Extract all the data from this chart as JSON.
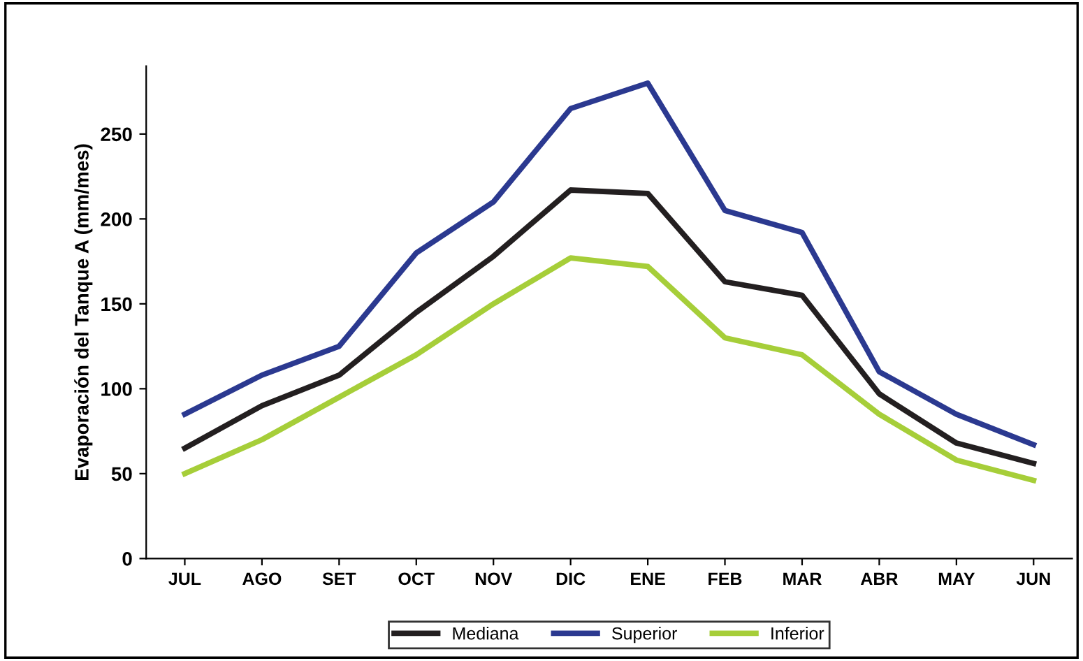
{
  "chart_data": {
    "type": "line",
    "ylabel": "Evaporación del Tanque A (mm/mes)",
    "categories": [
      "JUL",
      "AGO",
      "SET",
      "OCT",
      "NOV",
      "DIC",
      "ENE",
      "FEB",
      "MAR",
      "ABR",
      "MAY",
      "JUN"
    ],
    "series": [
      {
        "name": "Mediana",
        "color": "#231f20",
        "values": [
          65,
          90,
          108,
          145,
          178,
          217,
          215,
          163,
          155,
          97,
          68,
          56
        ]
      },
      {
        "name": "Superior",
        "color": "#2b3990",
        "values": [
          85,
          108,
          125,
          180,
          210,
          265,
          280,
          205,
          192,
          110,
          85,
          67
        ]
      },
      {
        "name": "Inferior",
        "color": "#a6ce39",
        "values": [
          50,
          70,
          95,
          120,
          150,
          177,
          172,
          130,
          120,
          85,
          58,
          46
        ]
      }
    ],
    "ylim": [
      0,
      290
    ],
    "yticks": [
      0,
      50,
      100,
      150,
      200,
      250
    ],
    "grid": false,
    "legend": "bottom",
    "marker": "none",
    "line_style": "solid"
  }
}
